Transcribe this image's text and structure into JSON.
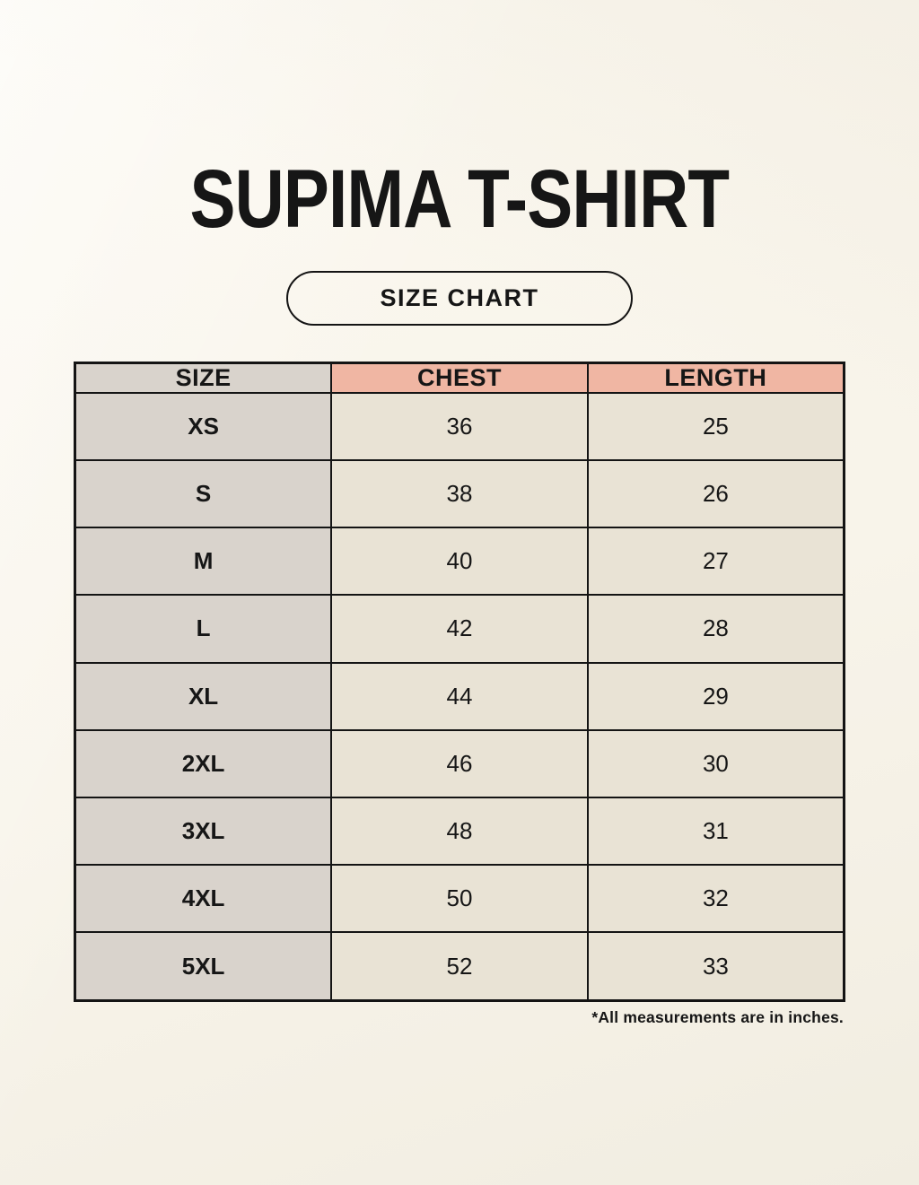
{
  "title": "SUPIMA T-SHIRT",
  "badge_label": "SIZE CHART",
  "footnote": "*All measurements are in inches.",
  "colors": {
    "background": "#f8f4ea",
    "accent_header": "#f0b6a3",
    "size_column_bg": "#d9d3cc",
    "cell_bg": "#e9e3d5",
    "border": "#141414",
    "text": "#161616"
  },
  "table": {
    "headers": [
      "SIZE",
      "CHEST",
      "LENGTH"
    ],
    "rows": [
      {
        "size": "XS",
        "chest": "36",
        "length": "25"
      },
      {
        "size": "S",
        "chest": "38",
        "length": "26"
      },
      {
        "size": "M",
        "chest": "40",
        "length": "27"
      },
      {
        "size": "L",
        "chest": "42",
        "length": "28"
      },
      {
        "size": "XL",
        "chest": "44",
        "length": "29"
      },
      {
        "size": "2XL",
        "chest": "46",
        "length": "30"
      },
      {
        "size": "3XL",
        "chest": "48",
        "length": "31"
      },
      {
        "size": "4XL",
        "chest": "50",
        "length": "32"
      },
      {
        "size": "5XL",
        "chest": "52",
        "length": "33"
      }
    ]
  },
  "chart_data": {
    "type": "table",
    "title": "SUPIMA T-SHIRT SIZE CHART",
    "columns": [
      "SIZE",
      "CHEST",
      "LENGTH"
    ],
    "rows": [
      [
        "XS",
        36,
        25
      ],
      [
        "S",
        38,
        26
      ],
      [
        "M",
        40,
        27
      ],
      [
        "L",
        42,
        28
      ],
      [
        "XL",
        44,
        29
      ],
      [
        "2XL",
        46,
        30
      ],
      [
        "3XL",
        48,
        31
      ],
      [
        "4XL",
        50,
        32
      ],
      [
        "5XL",
        52,
        33
      ]
    ],
    "units": "inches"
  }
}
